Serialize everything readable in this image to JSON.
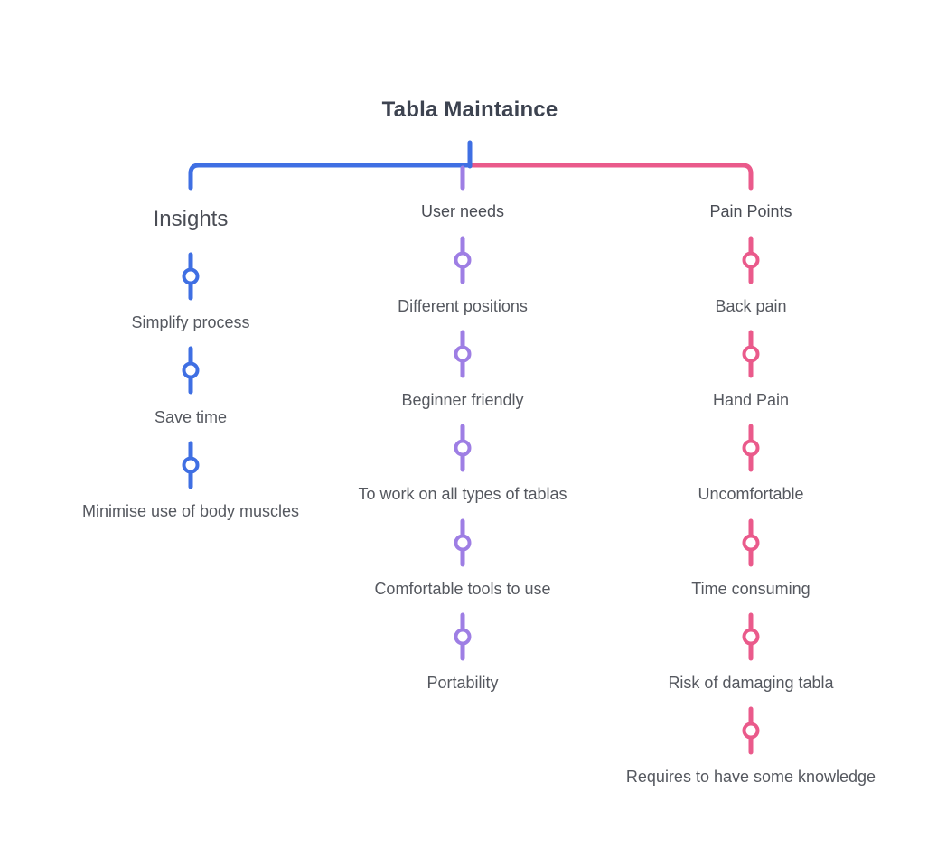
{
  "title": "Tabla Maintaince",
  "colors": {
    "insights": "#3f6fe3",
    "user_needs": "#9e7ee4",
    "pain_points": "#ea5a8b",
    "text": "#55585f",
    "title": "#3d4350"
  },
  "branches": [
    {
      "key": "insights",
      "label": "Insights",
      "items": [
        "Simplify process",
        "Save time",
        "Minimise use of body muscles"
      ]
    },
    {
      "key": "user_needs",
      "label": "User needs",
      "items": [
        "Different positions",
        "Beginner friendly",
        "To work on all types of tablas",
        "Comfortable tools to use",
        "Portability"
      ]
    },
    {
      "key": "pain_points",
      "label": "Pain Points",
      "items": [
        "Back pain",
        "Hand Pain",
        "Uncomfortable",
        "Time consuming",
        "Risk of damaging tabla",
        "Requires to have some knowledge"
      ]
    }
  ]
}
